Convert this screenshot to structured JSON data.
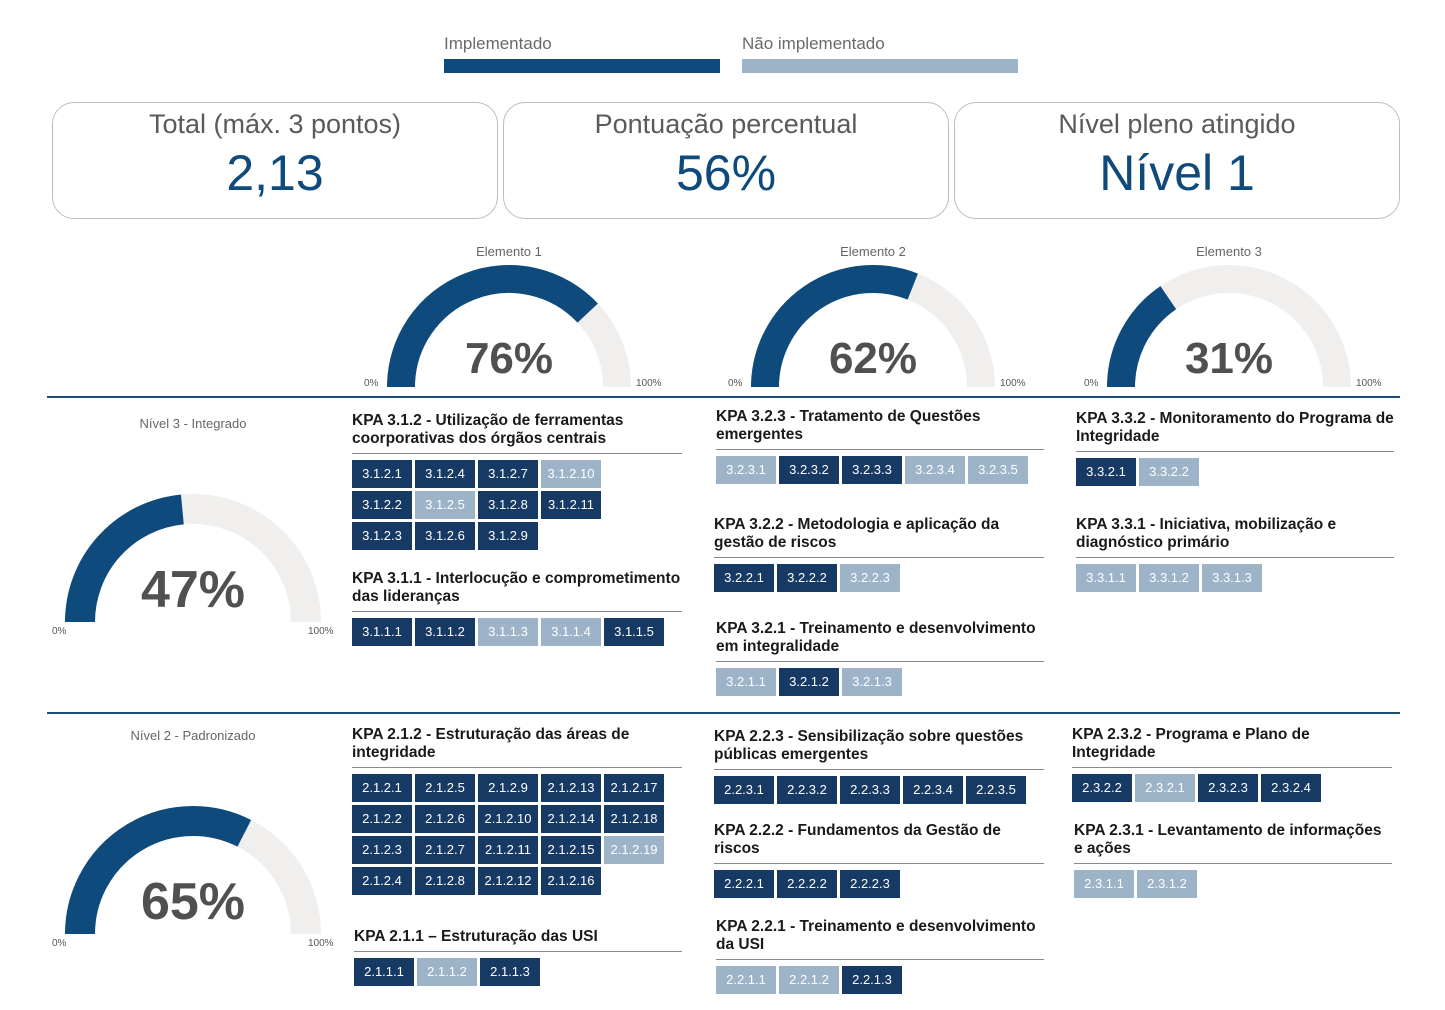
{
  "legend": {
    "implemented": {
      "label": "Implementado",
      "color": "#0e4a7b"
    },
    "not_implemented": {
      "label": "Não implementado",
      "color": "#9cb3c8"
    }
  },
  "cards": [
    {
      "title": "Total (máx. 3 pontos)",
      "value": "2,13"
    },
    {
      "title": "Pontuação percentual",
      "value": "56%"
    },
    {
      "title": "Nível pleno atingido",
      "value": "Nível 1"
    }
  ],
  "chart_data": [
    {
      "type": "gauge",
      "title": "Elemento 1",
      "value": 76,
      "label": "76%",
      "min_label": "0%",
      "max_label": "100%"
    },
    {
      "type": "gauge",
      "title": "Elemento 2",
      "value": 62,
      "label": "62%",
      "min_label": "0%",
      "max_label": "100%"
    },
    {
      "type": "gauge",
      "title": "Elemento 3",
      "value": 31,
      "label": "31%",
      "min_label": "0%",
      "max_label": "100%"
    },
    {
      "type": "gauge",
      "title": "Nível 3 - Integrado",
      "value": 47,
      "label": "47%",
      "min_label": "0%",
      "max_label": "100%"
    },
    {
      "type": "gauge",
      "title": "Nível 2 - Padronizado",
      "value": 65,
      "label": "65%",
      "min_label": "0%",
      "max_label": "100%"
    }
  ],
  "kpas": [
    {
      "title": "KPA 3.1.2 - Utilização de ferramentas coorporativas dos órgãos centrais",
      "items": [
        [
          "3.1.2.1",
          1
        ],
        [
          "3.1.2.4",
          1
        ],
        [
          "3.1.2.7",
          1
        ],
        [
          "3.1.2.10",
          0
        ],
        [
          "3.1.2.2",
          1
        ],
        [
          "3.1.2.5",
          0
        ],
        [
          "3.1.2.8",
          1
        ],
        [
          "3.1.2.11",
          1
        ],
        [
          "3.1.2.3",
          1
        ],
        [
          "3.1.2.6",
          1
        ],
        [
          "3.1.2.9",
          1
        ]
      ]
    },
    {
      "title": "KPA 3.1.1 - Interlocução e comprometimento das lideranças",
      "items": [
        [
          "3.1.1.1",
          1
        ],
        [
          "3.1.1.2",
          1
        ],
        [
          "3.1.1.3",
          0
        ],
        [
          "3.1.1.4",
          0
        ],
        [
          "3.1.1.5",
          1
        ]
      ]
    },
    {
      "title": "KPA 3.2.3 - Tratamento de Questões emergentes",
      "items": [
        [
          "3.2.3.1",
          0
        ],
        [
          "3.2.3.2",
          1
        ],
        [
          "3.2.3.3",
          1
        ],
        [
          "3.2.3.4",
          0
        ],
        [
          "3.2.3.5",
          0
        ]
      ]
    },
    {
      "title": "KPA 3.2.2 - Metodologia e aplicação da gestão de riscos",
      "items": [
        [
          "3.2.2.1",
          1
        ],
        [
          "3.2.2.2",
          1
        ],
        [
          "3.2.2.3",
          0
        ]
      ]
    },
    {
      "title": "KPA 3.2.1 - Treinamento e desenvolvimento em integralidade",
      "items": [
        [
          "3.2.1.1",
          0
        ],
        [
          "3.2.1.2",
          1
        ],
        [
          "3.2.1.3",
          0
        ]
      ]
    },
    {
      "title": "KPA 3.3.2 - Monitoramento do Programa de Integridade",
      "items": [
        [
          "3.3.2.1",
          1
        ],
        [
          "3.3.2.2",
          0
        ]
      ]
    },
    {
      "title": "KPA 3.3.1 - Iniciativa, mobilização e diagnóstico primário",
      "items": [
        [
          "3.3.1.1",
          0
        ],
        [
          "3.3.1.2",
          0
        ],
        [
          "3.3.1.3",
          0
        ]
      ]
    },
    {
      "title": "KPA 2.1.2 - Estruturação das áreas de integridade",
      "items": [
        [
          "2.1.2.1",
          1
        ],
        [
          "2.1.2.5",
          1
        ],
        [
          "2.1.2.9",
          1
        ],
        [
          "2.1.2.13",
          1
        ],
        [
          "2.1.2.17",
          1
        ],
        [
          "2.1.2.2",
          1
        ],
        [
          "2.1.2.6",
          1
        ],
        [
          "2.1.2.10",
          1
        ],
        [
          "2.1.2.14",
          1
        ],
        [
          "2.1.2.18",
          1
        ],
        [
          "2.1.2.3",
          1
        ],
        [
          "2.1.2.7",
          1
        ],
        [
          "2.1.2.11",
          1
        ],
        [
          "2.1.2.15",
          1
        ],
        [
          "2.1.2.19",
          0
        ],
        [
          "2.1.2.4",
          1
        ],
        [
          "2.1.2.8",
          1
        ],
        [
          "2.1.2.12",
          1
        ],
        [
          "2.1.2.16",
          1
        ]
      ]
    },
    {
      "title": "KPA 2.1.1 – Estruturação das USI",
      "items": [
        [
          "2.1.1.1",
          1
        ],
        [
          "2.1.1.2",
          0
        ],
        [
          "2.1.1.3",
          1
        ]
      ]
    },
    {
      "title": "KPA 2.2.3 - Sensibilização sobre questões públicas emergentes",
      "items": [
        [
          "2.2.3.1",
          1
        ],
        [
          "2.2.3.2",
          1
        ],
        [
          "2.2.3.3",
          1
        ],
        [
          "2.2.3.4",
          1
        ],
        [
          "2.2.3.5",
          1
        ]
      ]
    },
    {
      "title": "KPA 2.2.2 - Fundamentos da Gestão de riscos",
      "items": [
        [
          "2.2.2.1",
          1
        ],
        [
          "2.2.2.2",
          1
        ],
        [
          "2.2.2.3",
          1
        ]
      ]
    },
    {
      "title": "KPA 2.2.1 - Treinamento e desenvolvimento da USI",
      "items": [
        [
          "2.2.1.1",
          0
        ],
        [
          "2.2.1.2",
          0
        ],
        [
          "2.2.1.3",
          1
        ]
      ]
    },
    {
      "title": "KPA 2.3.2 - Programa e Plano de Integridade",
      "items": [
        [
          "2.3.2.2",
          1
        ],
        [
          "2.3.2.1",
          0
        ],
        [
          "2.3.2.3",
          1
        ],
        [
          "2.3.2.4",
          1
        ]
      ]
    },
    {
      "title": "KPA 2.3.1 - Levantamento de informações e ações",
      "items": [
        [
          "2.3.1.1",
          0
        ],
        [
          "2.3.1.2",
          0
        ]
      ]
    }
  ]
}
